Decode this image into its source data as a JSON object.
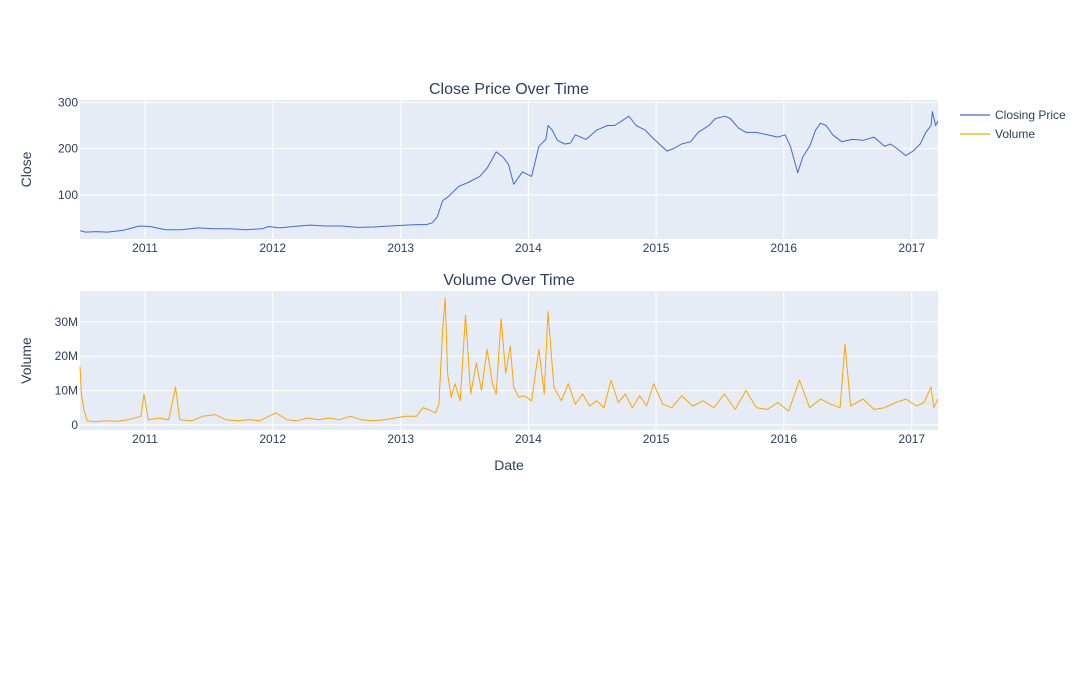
{
  "chart_data": [
    {
      "type": "line",
      "title": "Close Price Over Time",
      "xlabel": "",
      "ylabel": "Close",
      "x_range": [
        "2010-06-29",
        "2017-03-17"
      ],
      "ylim": [
        5,
        305
      ],
      "y_ticks": [
        100,
        200,
        300
      ],
      "y_tick_labels": [
        "100",
        "200",
        "300"
      ],
      "x_ticks": [
        "2011-01-01",
        "2012-01-01",
        "2013-01-01",
        "2014-01-01",
        "2015-01-01",
        "2016-01-01",
        "2017-01-01"
      ],
      "x_tick_labels": [
        "2011",
        "2012",
        "2013",
        "2014",
        "2015",
        "2016",
        "2017"
      ],
      "grid": true,
      "series": [
        {
          "name": "Closing Price",
          "color": "#4169e1",
          "x": [
            "2010-06-29",
            "2010-07-15",
            "2010-08-15",
            "2010-09-15",
            "2010-10-10",
            "2010-11-01",
            "2010-12-15",
            "2011-01-15",
            "2011-03-01",
            "2011-04-15",
            "2011-06-01",
            "2011-07-15",
            "2011-09-01",
            "2011-10-15",
            "2011-12-01",
            "2011-12-20",
            "2012-01-20",
            "2012-03-01",
            "2012-04-15",
            "2012-06-01",
            "2012-07-15",
            "2012-09-01",
            "2012-10-15",
            "2012-12-01",
            "2013-01-15",
            "2013-02-15",
            "2013-03-15",
            "2013-04-01",
            "2013-04-15",
            "2013-05-01",
            "2013-05-15",
            "2013-06-15",
            "2013-07-15",
            "2013-08-15",
            "2013-09-05",
            "2013-09-20",
            "2013-10-01",
            "2013-10-20",
            "2013-11-05",
            "2013-11-20",
            "2013-12-15",
            "2014-01-10",
            "2014-01-31",
            "2014-02-20",
            "2014-02-26",
            "2014-03-10",
            "2014-03-25",
            "2014-04-15",
            "2014-05-01",
            "2014-05-15",
            "2014-06-15",
            "2014-07-15",
            "2014-08-15",
            "2014-09-04",
            "2014-09-25",
            "2014-10-15",
            "2014-11-05",
            "2014-12-01",
            "2014-12-20",
            "2015-01-10",
            "2015-02-01",
            "2015-02-20",
            "2015-03-15",
            "2015-04-10",
            "2015-05-01",
            "2015-06-01",
            "2015-06-20",
            "2015-07-17",
            "2015-08-01",
            "2015-08-24",
            "2015-09-15",
            "2015-10-15",
            "2015-11-15",
            "2015-12-15",
            "2016-01-05",
            "2016-01-20",
            "2016-02-10",
            "2016-02-25",
            "2016-03-15",
            "2016-04-01",
            "2016-04-15",
            "2016-05-01",
            "2016-05-20",
            "2016-06-15",
            "2016-07-15",
            "2016-08-15",
            "2016-09-15",
            "2016-10-15",
            "2016-11-01",
            "2016-11-20",
            "2016-12-15",
            "2017-01-05",
            "2017-01-25",
            "2017-02-10",
            "2017-02-25",
            "2017-03-01",
            "2017-03-10",
            "2017-03-17"
          ],
          "y": [
            23,
            20,
            21,
            20,
            22,
            24,
            33,
            32,
            25,
            25,
            29,
            27,
            27,
            25,
            27,
            32,
            29,
            32,
            35,
            33,
            33,
            30,
            31,
            33,
            35,
            36,
            36,
            40,
            52,
            88,
            95,
            118,
            128,
            140,
            158,
            178,
            193,
            182,
            166,
            123,
            150,
            140,
            205,
            220,
            250,
            240,
            218,
            210,
            212,
            230,
            220,
            240,
            250,
            250,
            260,
            270,
            250,
            240,
            225,
            210,
            195,
            200,
            210,
            215,
            235,
            250,
            265,
            270,
            265,
            245,
            235,
            235,
            230,
            225,
            230,
            205,
            148,
            183,
            205,
            240,
            255,
            250,
            230,
            215,
            220,
            218,
            225,
            205,
            210,
            200,
            185,
            195,
            210,
            235,
            250,
            280,
            250,
            260
          ]
        }
      ]
    },
    {
      "type": "line",
      "title": "Volume Over Time",
      "xlabel": "Date",
      "ylabel": "Volume",
      "x_range": [
        "2010-06-29",
        "2017-03-17"
      ],
      "ylim": [
        -1500000,
        39000000
      ],
      "y_ticks": [
        0,
        10000000,
        20000000,
        30000000
      ],
      "y_tick_labels": [
        "0",
        "10M",
        "20M",
        "30M"
      ],
      "x_ticks": [
        "2011-01-01",
        "2012-01-01",
        "2013-01-01",
        "2014-01-01",
        "2015-01-01",
        "2016-01-01",
        "2017-01-01"
      ],
      "x_tick_labels": [
        "2011",
        "2012",
        "2013",
        "2014",
        "2015",
        "2016",
        "2017"
      ],
      "grid": true,
      "series": [
        {
          "name": "Volume",
          "color": "#ffa500",
          "x": [
            "2010-06-29",
            "2010-07-03",
            "2010-07-10",
            "2010-07-20",
            "2010-08-10",
            "2010-09-10",
            "2010-10-10",
            "2010-11-15",
            "2010-12-20",
            "2010-12-29",
            "2011-01-10",
            "2011-02-10",
            "2011-03-10",
            "2011-03-29",
            "2011-04-10",
            "2011-05-15",
            "2011-06-15",
            "2011-07-20",
            "2011-08-20",
            "2011-09-20",
            "2011-10-25",
            "2011-11-25",
            "2011-12-20",
            "2012-01-10",
            "2012-02-10",
            "2012-03-10",
            "2012-04-10",
            "2012-05-10",
            "2012-06-10",
            "2012-07-10",
            "2012-08-10",
            "2012-09-10",
            "2012-10-15",
            "2012-11-15",
            "2012-12-15",
            "2013-01-15",
            "2013-02-15",
            "2013-03-05",
            "2013-03-20",
            "2013-04-10",
            "2013-04-20",
            "2013-05-01",
            "2013-05-08",
            "2013-05-15",
            "2013-05-25",
            "2013-06-05",
            "2013-06-20",
            "2013-07-05",
            "2013-07-20",
            "2013-08-05",
            "2013-08-20",
            "2013-09-05",
            "2013-09-20",
            "2013-10-01",
            "2013-10-15",
            "2013-10-28",
            "2013-11-10",
            "2013-11-20",
            "2013-12-05",
            "2013-12-20",
            "2014-01-10",
            "2014-01-31",
            "2014-02-15",
            "2014-02-26",
            "2014-03-15",
            "2014-04-05",
            "2014-04-25",
            "2014-05-15",
            "2014-06-05",
            "2014-06-25",
            "2014-07-15",
            "2014-08-05",
            "2014-08-25",
            "2014-09-15",
            "2014-10-05",
            "2014-10-25",
            "2014-11-15",
            "2014-12-05",
            "2014-12-25",
            "2015-01-20",
            "2015-02-15",
            "2015-03-15",
            "2015-04-15",
            "2015-05-15",
            "2015-06-15",
            "2015-07-15",
            "2015-08-15",
            "2015-09-15",
            "2015-10-15",
            "2015-11-15",
            "2015-12-15",
            "2016-01-15",
            "2016-02-15",
            "2016-03-15",
            "2016-04-15",
            "2016-05-15",
            "2016-06-10",
            "2016-06-24",
            "2016-07-10",
            "2016-08-15",
            "2016-09-15",
            "2016-10-15",
            "2016-11-15",
            "2016-12-15",
            "2017-01-15",
            "2017-02-05",
            "2017-02-25",
            "2017-03-05",
            "2017-03-17"
          ],
          "y": [
            17000000,
            9000000,
            4500000,
            1200000,
            900000,
            1200000,
            1000000,
            1500000,
            2500000,
            9000000,
            1500000,
            2000000,
            1500000,
            11000000,
            1500000,
            1200000,
            2500000,
            3000000,
            1500000,
            1200000,
            1500000,
            1200000,
            2500000,
            3500000,
            1500000,
            1200000,
            2000000,
            1500000,
            2000000,
            1500000,
            2500000,
            1500000,
            1200000,
            1500000,
            2000000,
            2500000,
            2500000,
            5000000,
            4500000,
            3500000,
            6000000,
            28000000,
            37000000,
            15000000,
            8000000,
            12000000,
            7000000,
            32000000,
            9000000,
            18000000,
            10000000,
            22000000,
            12000000,
            9000000,
            31000000,
            15000000,
            23000000,
            11000000,
            8000000,
            8500000,
            7000000,
            22000000,
            9000000,
            33000000,
            11000000,
            7000000,
            12000000,
            6000000,
            9000000,
            5500000,
            7000000,
            5000000,
            13000000,
            6500000,
            9000000,
            5000000,
            8500000,
            5500000,
            12000000,
            6000000,
            5000000,
            8500000,
            5500000,
            7000000,
            5000000,
            9000000,
            4500000,
            10000000,
            5000000,
            4500000,
            6500000,
            4000000,
            13000000,
            5000000,
            7500000,
            6000000,
            5000000,
            23500000,
            5500000,
            7500000,
            4500000,
            5000000,
            6500000,
            7500000,
            5500000,
            6500000,
            11000000,
            5000000,
            7500000
          ]
        }
      ]
    }
  ],
  "legend": {
    "position": "top-right",
    "items": [
      {
        "label": "Closing Price",
        "color": "#4169e1"
      },
      {
        "label": "Volume",
        "color": "#ffa500"
      }
    ]
  }
}
